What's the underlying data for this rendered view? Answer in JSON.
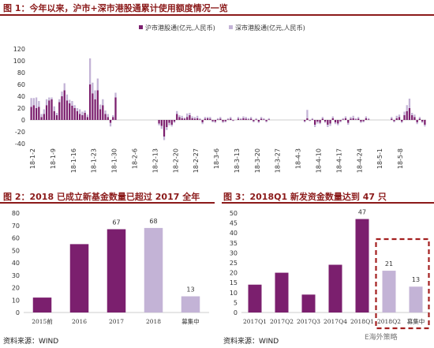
{
  "chart1": {
    "title": "图 1：今年以来，沪市+深市港股通累计使用额度情况一览",
    "source": "资料来源：WIND",
    "colors": {
      "sh": "#7B1F6E",
      "sz": "#C3B3D6"
    },
    "chart_data": {
      "type": "bar",
      "stacked": true,
      "title": "图 1：今年以来，沪市+深市港股通累计使用额度情况一览",
      "ylim": [
        -40,
        120
      ],
      "yticks": [
        -40,
        -20,
        0,
        20,
        40,
        60,
        80,
        100,
        120
      ],
      "tick_labels": [
        "18-1-2",
        "18-1-9",
        "18-1-16",
        "18-1-23",
        "18-1-30",
        "18-2-6",
        "18-2-13",
        "18-2-20",
        "18-2-27",
        "18-3-6",
        "18-3-13",
        "18-3-20",
        "18-3-27",
        "18-4-3",
        "18-4-10",
        "18-4-17",
        "18-4-24",
        "18-5-1",
        "18-5-8"
      ],
      "legend_position": "top",
      "series": [
        {
          "name": "沪市港股通(亿元,人民币)",
          "values": [
            22,
            25,
            20,
            22,
            5,
            10,
            25,
            33,
            35,
            15,
            8,
            30,
            40,
            50,
            33,
            28,
            24,
            20,
            15,
            10,
            8,
            12,
            5,
            60,
            45,
            35,
            50,
            18,
            25,
            10,
            5,
            -5,
            5,
            38,
            0,
            0,
            0,
            0,
            0,
            0,
            0,
            0,
            0,
            0,
            0,
            0,
            0,
            0,
            0,
            0,
            -6,
            -10,
            -28,
            -12,
            -5,
            -8,
            -3,
            10,
            5,
            3,
            2,
            5,
            8,
            3,
            2,
            3,
            1,
            -4,
            2,
            3,
            2,
            -2,
            -3,
            1,
            2,
            -3,
            -2,
            1,
            2,
            -1,
            0,
            2,
            1,
            3,
            2,
            1,
            2,
            -2,
            1,
            -3,
            2,
            1,
            -2,
            1,
            0,
            0,
            0,
            0,
            0,
            0,
            0,
            0,
            0,
            0,
            0,
            0,
            0,
            -2,
            3,
            -1,
            1,
            -8,
            -3,
            -5,
            2,
            -3,
            -8,
            -6,
            3,
            -4,
            -6,
            -2,
            1,
            3,
            -5,
            2,
            3,
            1,
            2,
            -3,
            -2,
            3,
            1,
            0,
            0,
            0,
            0,
            0,
            0,
            0,
            0,
            2,
            -2,
            3,
            5,
            -3,
            8,
            15,
            20,
            8,
            5,
            -4,
            2,
            -3,
            -8
          ]
        },
        {
          "name": "深市港股通(亿元,人民币)",
          "values": [
            15,
            12,
            18,
            10,
            5,
            8,
            10,
            5,
            3,
            8,
            4,
            5,
            8,
            12,
            10,
            6,
            8,
            5,
            5,
            8,
            6,
            4,
            4,
            44,
            18,
            15,
            20,
            8,
            10,
            6,
            5,
            -6,
            3,
            8,
            0,
            0,
            0,
            0,
            0,
            0,
            0,
            0,
            0,
            0,
            0,
            0,
            0,
            0,
            0,
            0,
            -3,
            -5,
            -6,
            -5,
            -4,
            -3,
            -2,
            5,
            3,
            4,
            2,
            6,
            4,
            3,
            3,
            4,
            2,
            -3,
            3,
            2,
            3,
            -2,
            -2,
            2,
            3,
            -2,
            -2,
            2,
            3,
            -1,
            0,
            3,
            2,
            3,
            3,
            2,
            3,
            -2,
            2,
            -2,
            3,
            2,
            -2,
            2,
            0,
            0,
            0,
            0,
            0,
            0,
            0,
            0,
            0,
            0,
            0,
            0,
            0,
            -2,
            14,
            -1,
            2,
            -4,
            -3,
            -2,
            3,
            -2,
            -4,
            -4,
            3,
            -3,
            -3,
            -2,
            2,
            3,
            -3,
            3,
            4,
            2,
            3,
            -2,
            -2,
            3,
            2,
            0,
            0,
            0,
            0,
            0,
            0,
            0,
            0,
            3,
            -2,
            4,
            4,
            -2,
            6,
            10,
            16,
            4,
            4,
            -3,
            3,
            -2,
            -3
          ]
        }
      ]
    }
  },
  "chart2": {
    "title": "图 2：2018 已成立新基金数量已超过 2017 全年",
    "source": "资料来源：WIND",
    "chart_data": {
      "type": "bar",
      "title": "图 2：2018 已成立新基金数量已超过 2017 全年",
      "categories": [
        "2015前",
        "2016",
        "2017",
        "2018",
        "募集中"
      ],
      "values": [
        12,
        55,
        67,
        68,
        13
      ],
      "data_labels": [
        "",
        "",
        "67",
        "68",
        "13"
      ],
      "colors": [
        "#7B1F6E",
        "#7B1F6E",
        "#7B1F6E",
        "#C3B3D6",
        "#C3B3D6"
      ],
      "ylim": [
        0,
        80
      ],
      "yticks": [
        0,
        10,
        20,
        30,
        40,
        50,
        60,
        70,
        80
      ]
    }
  },
  "chart3": {
    "title": "图 3：2018Q1 新发资金数量达到 47 只",
    "source": "资料来源：WIND",
    "chart_data": {
      "type": "bar",
      "title": "图 3：2018Q1 新发资金数量达到 47 只",
      "categories": [
        "2017Q1",
        "2017Q2",
        "2017Q3",
        "2017Q4",
        "2018Q1",
        "2018Q2",
        "募集中"
      ],
      "values": [
        14,
        20,
        9,
        24,
        47,
        21,
        13
      ],
      "data_labels": [
        "",
        "",
        "",
        "",
        "47",
        "21",
        "13"
      ],
      "colors": [
        "#7B1F6E",
        "#7B1F6E",
        "#7B1F6E",
        "#7B1F6E",
        "#7B1F6E",
        "#C3B3D6",
        "#C3B3D6"
      ],
      "ylim": [
        0,
        50
      ],
      "yticks": [
        0,
        5,
        10,
        15,
        20,
        25,
        30,
        35,
        40,
        45,
        50
      ],
      "highlight_box_color": "#A31F1F"
    }
  },
  "watermark": "E海外策略"
}
